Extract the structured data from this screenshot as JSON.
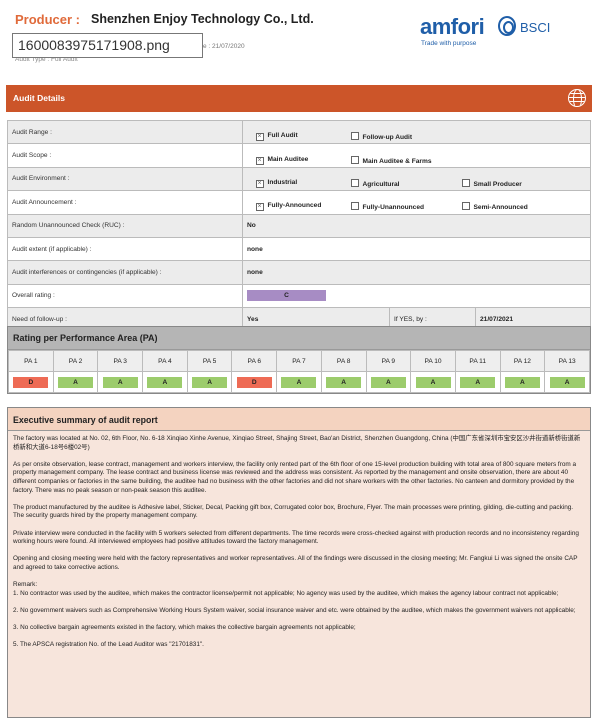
{
  "header": {
    "producer_label": "Producer :",
    "company": "Shenzhen Enjoy Technology Co., Ltd.",
    "tooltip": "1600083975171908.png",
    "date_text": "e : 21/07/2020",
    "audit_type": "Audit Type : Full Audit"
  },
  "logo": {
    "wordmark": "amfori",
    "suffix": "BSCI",
    "tagline": "Trade with purpose"
  },
  "details_bar": {
    "title": "Audit Details",
    "icon": "globe-icon",
    "color": "#cc5529"
  },
  "details": {
    "range": {
      "label": "Audit Range :",
      "options": [
        {
          "label": "Full Audit",
          "checked": true
        },
        {
          "label": "Follow-up Audit",
          "checked": false
        }
      ]
    },
    "scope": {
      "label": "Audit Scope :",
      "options": [
        {
          "label": "Main Auditee",
          "checked": true
        },
        {
          "label": "Main Auditee & Farms",
          "checked": false
        }
      ]
    },
    "environment": {
      "label": "Audit Environment :",
      "options": [
        {
          "label": "Industrial",
          "checked": true
        },
        {
          "label": "Agricultural",
          "checked": false
        },
        {
          "label": "Small Producer",
          "checked": false
        }
      ]
    },
    "announcement": {
      "label": "Audit Announcement :",
      "options": [
        {
          "label": "Fully-Announced",
          "checked": true
        },
        {
          "label": "Fully-Unannounced",
          "checked": false
        },
        {
          "label": "Semi-Announced",
          "checked": false
        }
      ]
    },
    "ruc": {
      "label": "Random Unannounced Check (RUC) :",
      "value": "No"
    },
    "extent": {
      "label": "Audit extent (if applicable) :",
      "value": "none"
    },
    "interferences": {
      "label": "Audit interferences or contingencies (if applicable) :",
      "value": "none"
    },
    "overall": {
      "label": "Overall rating :",
      "value": "C",
      "color": "#a78cc4"
    },
    "followup": {
      "label": "Need of follow-up :",
      "value": "Yes",
      "by_label": "If YES, by :",
      "by_value": "21/07/2021"
    }
  },
  "pa": {
    "title": "Rating per Performance Area (PA)",
    "areas": [
      {
        "name": "PA 1",
        "rating": "D"
      },
      {
        "name": "PA 2",
        "rating": "A"
      },
      {
        "name": "PA 3",
        "rating": "A"
      },
      {
        "name": "PA 4",
        "rating": "A"
      },
      {
        "name": "PA 5",
        "rating": "A"
      },
      {
        "name": "PA 6",
        "rating": "D"
      },
      {
        "name": "PA 7",
        "rating": "A"
      },
      {
        "name": "PA 8",
        "rating": "A"
      },
      {
        "name": "PA 9",
        "rating": "A"
      },
      {
        "name": "PA 10",
        "rating": "A"
      },
      {
        "name": "PA 11",
        "rating": "A"
      },
      {
        "name": "PA 12",
        "rating": "A"
      },
      {
        "name": "PA 13",
        "rating": "A"
      }
    ],
    "colors": {
      "A": "#9ccc6c",
      "D": "#ee6b55"
    }
  },
  "exec": {
    "title": "Executive summary of audit report",
    "paragraphs": [
      "The factory was located at No. 02, 6th Floor, No. 6-18 Xinqiao Xinhe Avenue, Xinqiao Street, Shajing Street, Bao'an District, Shenzhen Guangdong, China (中国广东省深圳市宝安区沙井街道新桥街道新桥新和大道6-18号6楼02号)",
      "As per onsite observation, lease contract, management and workers interview, the facility only rented part of the 6th floor of one 15-level production building with total area of 800 square meters from a property management company. The lease contract and business license was reviewed and the address was consistent. As reported by the management and onsite observation, there are about 40 different companies or factories in the same building, the auditee had no business with the other factories and did not share workers with the other factories. No canteen and dormitory provided by the factory. There was no peak season or non-peak season this auditee.",
      "The product manufactured by the auditee is Adhesive label, Sticker, Decal, Packing gift box, Corrugated color box, Brochure, Flyer. The main processes were printing, gilding, die-cutting and packing. The security guards hired by the property management company.",
      "Private interview were conducted in the facility with 5 workers selected from different departments. The time records were cross-checked against with production records and no inconsistency regarding working hours were found. All interviewed employees had positive attitudes toward the factory management.",
      "Opening and closing meeting were held with the factory representatives and worker representatives. All of the findings were discussed in the closing meeting; Mr. Fangkui Li was signed the onsite CAP and agreed to take corrective actions."
    ],
    "remark_label": "Remark:",
    "remarks": [
      "1. No contractor was used by the auditee, which makes the contractor license/permit not applicable; No agency was used by the auditee, which makes the agency labour contract not applicable;",
      "2. No government waivers such as Comprehensive Working Hours System waiver, social insurance waiver and etc. were obtained by the auditee, which makes the government waivers not applicable;",
      "3. No collective bargain agreements existed in the factory, which makes the collective bargain agreements not applicable;",
      "5. The APSCA registration No. of the Lead Auditor was \"21701831\"."
    ]
  }
}
